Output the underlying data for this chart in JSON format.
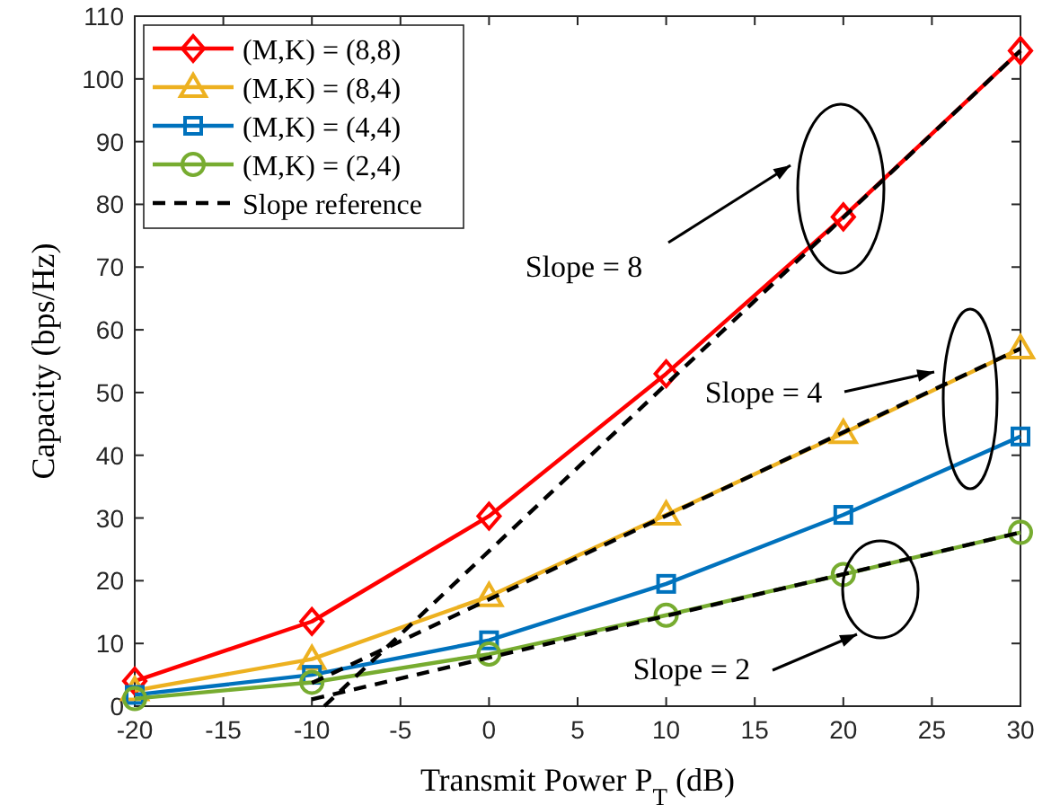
{
  "chart_data": {
    "type": "line",
    "xlabel": "Transmit Power P$_{T}$ (dB)",
    "ylabel": "Capacity (bps/Hz)",
    "x": [
      -20,
      -10,
      0,
      10,
      20,
      30
    ],
    "series": [
      {
        "name": "(M,K) = (8,8)",
        "color": "#ff0000",
        "marker": "diamond",
        "values": [
          4,
          13.5,
          30.3,
          53,
          78,
          104.5
        ]
      },
      {
        "name": "(M,K) = (8,4)",
        "color": "#edb120",
        "marker": "triangle",
        "values": [
          2.5,
          7.5,
          17.5,
          30.5,
          43.5,
          57
        ]
      },
      {
        "name": "(M,K) = (4,4)",
        "color": "#0072bd",
        "marker": "square",
        "values": [
          1.8,
          5,
          10.5,
          19.5,
          30.5,
          43
        ]
      },
      {
        "name": "(M,K) = (2,4)",
        "color": "#77ac30",
        "marker": "circle",
        "values": [
          1.2,
          3.8,
          8.3,
          14.5,
          21,
          27.7
        ]
      },
      {
        "name": "Slope reference",
        "color": "#000000",
        "marker": "none",
        "line_style": "dashed",
        "x": [
          -9.3,
          30
        ],
        "values": [
          0,
          104.5
        ]
      },
      {
        "color": "#000000",
        "marker": "none",
        "line_style": "dashed",
        "x": [
          -10,
          30
        ],
        "values": [
          3.7,
          57
        ]
      },
      {
        "color": "#000000",
        "marker": "none",
        "line_style": "dashed",
        "x": [
          -10,
          30
        ],
        "values": [
          1.1,
          27.7
        ]
      }
    ],
    "xlim": [
      -20,
      30
    ],
    "xticks": [
      -20,
      -15,
      -10,
      -5,
      0,
      5,
      10,
      15,
      20,
      25,
      30
    ],
    "ylim": [
      0,
      110
    ],
    "yticks": [
      0,
      10,
      20,
      30,
      40,
      50,
      60,
      70,
      80,
      90,
      100,
      110
    ],
    "grid": false,
    "legend": "top left",
    "annotations": [
      "Slope = 8",
      "Slope = 4",
      "Slope = 2"
    ]
  }
}
